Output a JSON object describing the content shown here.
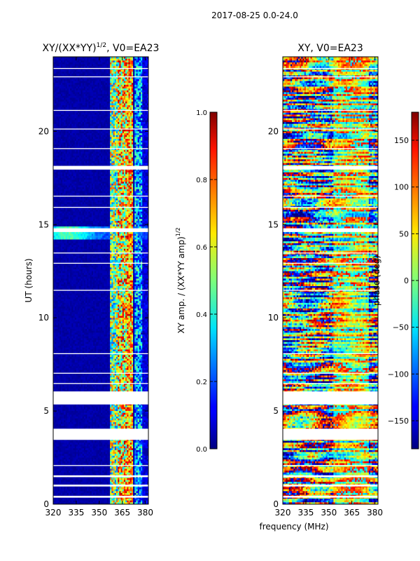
{
  "figure": {
    "suptitle": "2017-08-25 0.0-24.0"
  },
  "chart_data": [
    {
      "type": "heatmap",
      "title": "XY/(XX*YY)",
      "title_exponent": "1/2",
      "title_suffix": ", V0=EA23",
      "xlabel": "",
      "ylabel": "UT (hours)",
      "xlim": [
        320,
        382
      ],
      "ylim": [
        0,
        24
      ],
      "xticks": [
        320,
        335,
        350,
        365,
        380
      ],
      "yticks": [
        0,
        5,
        10,
        15,
        20
      ],
      "colorbar": {
        "label": "XY amp. / (XX*YY amp)",
        "label_exponent": "1/2",
        "vmin": 0.0,
        "vmax": 1.0,
        "ticks": [
          "0.0",
          "0.2",
          "0.4",
          "0.6",
          "0.8",
          "1.0"
        ],
        "colormap": "jet"
      }
    },
    {
      "type": "heatmap",
      "title": "XY, V0=EA23",
      "xlabel": "frequency (MHz)",
      "ylabel": "",
      "xlim": [
        320,
        382
      ],
      "ylim": [
        0,
        24
      ],
      "xticks": [
        320,
        335,
        350,
        365,
        380
      ],
      "yticks": [
        0,
        5,
        10,
        15,
        20
      ],
      "colorbar": {
        "label": "phase (deg)",
        "vmin": -180,
        "vmax": 180,
        "ticks": [
          "−150",
          "−100",
          "−50",
          "0",
          "50",
          "100",
          "150"
        ],
        "colormap": "jet"
      }
    }
  ],
  "data_gaps_hours": [
    [
      3.45,
      4.05
    ],
    [
      5.35,
      6.05
    ],
    [
      14.6,
      14.8
    ],
    [
      17.95,
      18.15
    ],
    [
      0.35,
      0.45
    ],
    [
      0.95,
      1.05
    ],
    [
      1.45,
      1.55
    ],
    [
      2.05,
      2.1
    ],
    [
      6.45,
      6.5
    ],
    [
      7.0,
      7.05
    ],
    [
      8.05,
      8.1
    ],
    [
      11.45,
      11.5
    ],
    [
      12.9,
      12.95
    ],
    [
      13.45,
      13.5
    ],
    [
      15.9,
      15.95
    ],
    [
      16.5,
      16.55
    ],
    [
      19.05,
      19.1
    ],
    [
      20.1,
      20.15
    ],
    [
      21.1,
      21.15
    ],
    [
      22.9,
      22.95
    ],
    [
      23.35,
      23.4
    ]
  ]
}
